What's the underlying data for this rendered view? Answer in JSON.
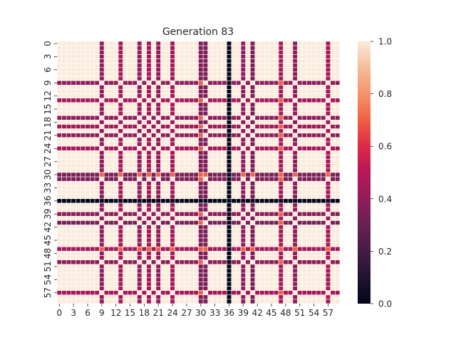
{
  "chart_data": {
    "type": "heatmap",
    "title": "Generation 83",
    "rows": 60,
    "cols": 60,
    "x_tick_labels": [
      "0",
      "3",
      "6",
      "9",
      "12",
      "15",
      "18",
      "21",
      "24",
      "27",
      "30",
      "33",
      "36",
      "39",
      "42",
      "45",
      "48",
      "51",
      "54",
      "57"
    ],
    "y_tick_labels": [
      "0",
      "3",
      "6",
      "9",
      "12",
      "15",
      "18",
      "21",
      "24",
      "27",
      "30",
      "33",
      "36",
      "39",
      "42",
      "45",
      "48",
      "51",
      "54",
      "57"
    ],
    "colorbar": {
      "min": 0.0,
      "max": 1.0,
      "tick_labels": [
        "0.0",
        "0.2",
        "0.4",
        "0.6",
        "0.8",
        "1.0"
      ],
      "colormap": "rocket"
    },
    "base_value": 1.0,
    "pair_value": 0.45,
    "highlight_value": 0.7,
    "highlight_indices": [
      18,
      30,
      40,
      47
    ],
    "lines": [
      {
        "index": 9,
        "value": 0.4
      },
      {
        "index": 13,
        "value": 0.45
      },
      {
        "index": 17,
        "value": 0.4
      },
      {
        "index": 19,
        "value": 0.45
      },
      {
        "index": 21,
        "value": 0.4
      },
      {
        "index": 24,
        "value": 0.45
      },
      {
        "index": 30,
        "value": 0.35
      },
      {
        "index": 31,
        "value": 0.35
      },
      {
        "index": 36,
        "value": 0.0
      },
      {
        "index": 39,
        "value": 0.4
      },
      {
        "index": 41,
        "value": 0.35
      },
      {
        "index": 47,
        "value": 0.45
      },
      {
        "index": 50,
        "value": 0.4
      },
      {
        "index": 57,
        "value": 0.45
      }
    ]
  }
}
